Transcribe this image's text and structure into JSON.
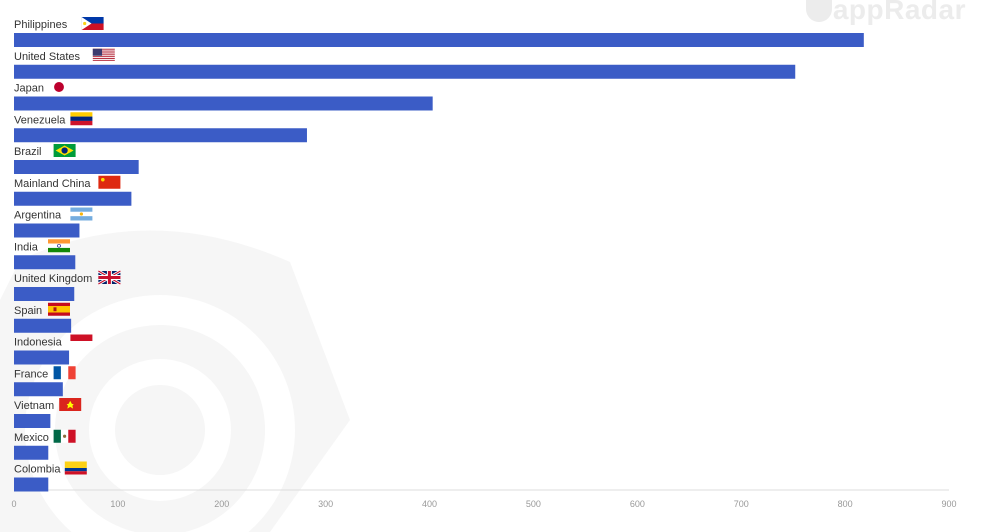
{
  "watermark": {
    "text": "DappRadar"
  },
  "colors": {
    "bar": "#3b5cc6",
    "axis": "#dcdcdc",
    "label": "#333333",
    "tick": "#999999",
    "watermark": "#eeeeee"
  },
  "chart_data": {
    "type": "bar",
    "orientation": "horizontal",
    "categories": [
      "Philippines",
      "United States",
      "Japan",
      "Venezuela",
      "Brazil",
      "Mainland China",
      "Argentina",
      "India",
      "United Kingdom",
      "Spain",
      "Indonesia",
      "France",
      "Vietnam",
      "Mexico",
      "Colombia"
    ],
    "values": [
      818,
      752,
      403,
      282,
      120,
      113,
      63,
      59,
      58,
      55,
      53,
      47,
      35,
      33,
      33
    ],
    "flags": [
      "ph-flag-icon",
      "us-flag-icon",
      "jp-flag-icon",
      "ve-flag-icon",
      "br-flag-icon",
      "cn-flag-icon",
      "ar-flag-icon",
      "in-flag-icon",
      "gb-flag-icon",
      "es-flag-icon",
      "id-flag-icon",
      "fr-flag-icon",
      "vn-flag-icon",
      "mx-flag-icon",
      "co-flag-icon"
    ],
    "x_ticks": [
      "0",
      "100",
      "200",
      "300",
      "400",
      "500",
      "600",
      "700",
      "800",
      "900"
    ],
    "xlim": [
      0,
      900
    ],
    "grid": false,
    "title": "",
    "xlabel": "",
    "ylabel": ""
  }
}
